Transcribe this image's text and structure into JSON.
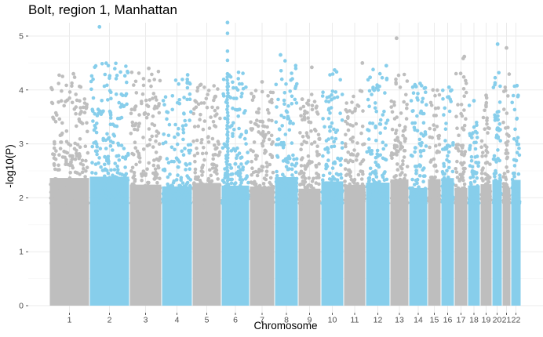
{
  "chart_data": {
    "type": "scatter",
    "title": "Bolt, region 1, Manhattan",
    "xlabel": "Chromosome",
    "ylabel": "-log10(P)",
    "ylim": [
      0,
      5.3
    ],
    "yticks": [
      0,
      1,
      2,
      3,
      4,
      5
    ],
    "grid": true,
    "legend": "none",
    "colors": {
      "odd": "#bebebe",
      "even": "#87ceeb"
    },
    "chromosomes": [
      {
        "label": "1",
        "top": 4.3,
        "peak": {
          "x": 0.6,
          "y": 4.3
        }
      },
      {
        "label": "2",
        "top": 4.55,
        "peak": {
          "x": 0.25,
          "y": 5.17
        }
      },
      {
        "label": "3",
        "top": 4.35,
        "peak": {
          "x": 0.6,
          "y": 4.4
        }
      },
      {
        "label": "4",
        "top": 4.2,
        "peak": {
          "x": 0.85,
          "y": 4.28
        }
      },
      {
        "label": "5",
        "top": 4.1,
        "peak": {
          "x": 0.3,
          "y": 4.1
        }
      },
      {
        "label": "6",
        "top": 4.4,
        "peak": {
          "x": 0.22,
          "y": 5.25
        }
      },
      {
        "label": "7",
        "top": 4.15,
        "peak": {
          "x": 0.5,
          "y": 4.15
        }
      },
      {
        "label": "8",
        "top": 4.55,
        "peak": {
          "x": 0.25,
          "y": 4.65
        }
      },
      {
        "label": "9",
        "top": 4.0,
        "peak": {
          "x": 0.6,
          "y": 4.42
        }
      },
      {
        "label": "10",
        "top": 4.35,
        "peak": {
          "x": 0.6,
          "y": 4.37
        }
      },
      {
        "label": "11",
        "top": 4.05,
        "peak": {
          "x": 0.85,
          "y": 4.5
        }
      },
      {
        "label": "12",
        "top": 4.4,
        "peak": {
          "x": 0.85,
          "y": 4.45
        }
      },
      {
        "label": "13",
        "top": 4.3,
        "peak": {
          "x": 0.35,
          "y": 4.96
        }
      },
      {
        "label": "14",
        "top": 4.1,
        "peak": {
          "x": 0.6,
          "y": 4.12
        }
      },
      {
        "label": "15",
        "top": 4.0,
        "peak": {
          "x": 0.4,
          "y": 4.0
        }
      },
      {
        "label": "16",
        "top": 4.0,
        "peak": {
          "x": 0.6,
          "y": 4.05
        }
      },
      {
        "label": "17",
        "top": 4.6,
        "peak": {
          "x": 0.75,
          "y": 4.62
        }
      },
      {
        "label": "18",
        "top": 3.8,
        "peak": {
          "x": 0.5,
          "y": 3.8
        }
      },
      {
        "label": "19",
        "top": 3.9,
        "peak": {
          "x": 0.5,
          "y": 3.9
        }
      },
      {
        "label": "20",
        "top": 4.35,
        "peak": {
          "x": 0.55,
          "y": 4.85
        }
      },
      {
        "label": "21",
        "top": 4.3,
        "peak": {
          "x": 0.5,
          "y": 4.78
        }
      },
      {
        "label": "22",
        "top": 4.1,
        "peak": {
          "x": 0.6,
          "y": 4.08
        }
      }
    ]
  }
}
